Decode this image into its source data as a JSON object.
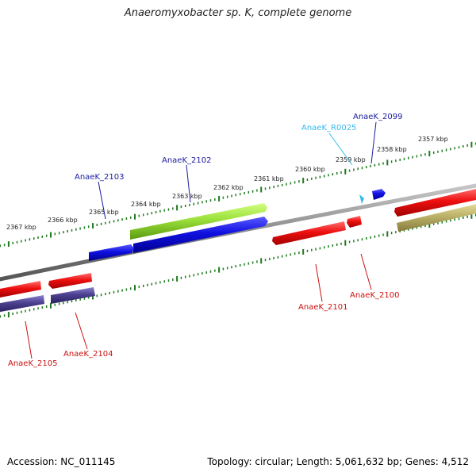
{
  "title": "Anaeromyxobacter sp. K, complete genome",
  "footer": {
    "accession": "Accession: NC_011145",
    "summary": "Topology: circular; Length: 5,061,632 bp; Genes: 4,512"
  },
  "colors": {
    "backbone": "#8a8a8a",
    "tick": "#1f7a1f",
    "forward_gene": "#1010e0",
    "forward_rna": "#9be03a",
    "reverse_gene": "#ee1010",
    "reverse_other": "#4b3f8f",
    "reverse_khaki": "#bdb26a",
    "label_blue": "#1a1aa0",
    "label_red": "#cc1111",
    "label_cyan": "#33bbee"
  },
  "ticks": [
    {
      "label": "2367 kbp"
    },
    {
      "label": "2366 kbp"
    },
    {
      "label": "2365 kbp"
    },
    {
      "label": "2364 kbp"
    },
    {
      "label": "2363 kbp"
    },
    {
      "label": "2362 kbp"
    },
    {
      "label": "2361 kbp"
    },
    {
      "label": "2360 kbp"
    },
    {
      "label": "2359 kbp"
    },
    {
      "label": "2358 kbp"
    },
    {
      "label": "2357 kbp"
    }
  ],
  "gene_labels": [
    {
      "id": "AnaeK_2099",
      "text": "AnaeK_2099"
    },
    {
      "id": "AnaeK_R0025",
      "text": "AnaeK_R0025"
    },
    {
      "id": "AnaeK_2102",
      "text": "AnaeK_2102"
    },
    {
      "id": "AnaeK_2103",
      "text": "AnaeK_2103"
    },
    {
      "id": "AnaeK_2101",
      "text": "AnaeK_2101"
    },
    {
      "id": "AnaeK_2100",
      "text": "AnaeK_2100"
    },
    {
      "id": "AnaeK_2104",
      "text": "AnaeK_2104"
    },
    {
      "id": "AnaeK_2105",
      "text": "AnaeK_2105"
    }
  ]
}
